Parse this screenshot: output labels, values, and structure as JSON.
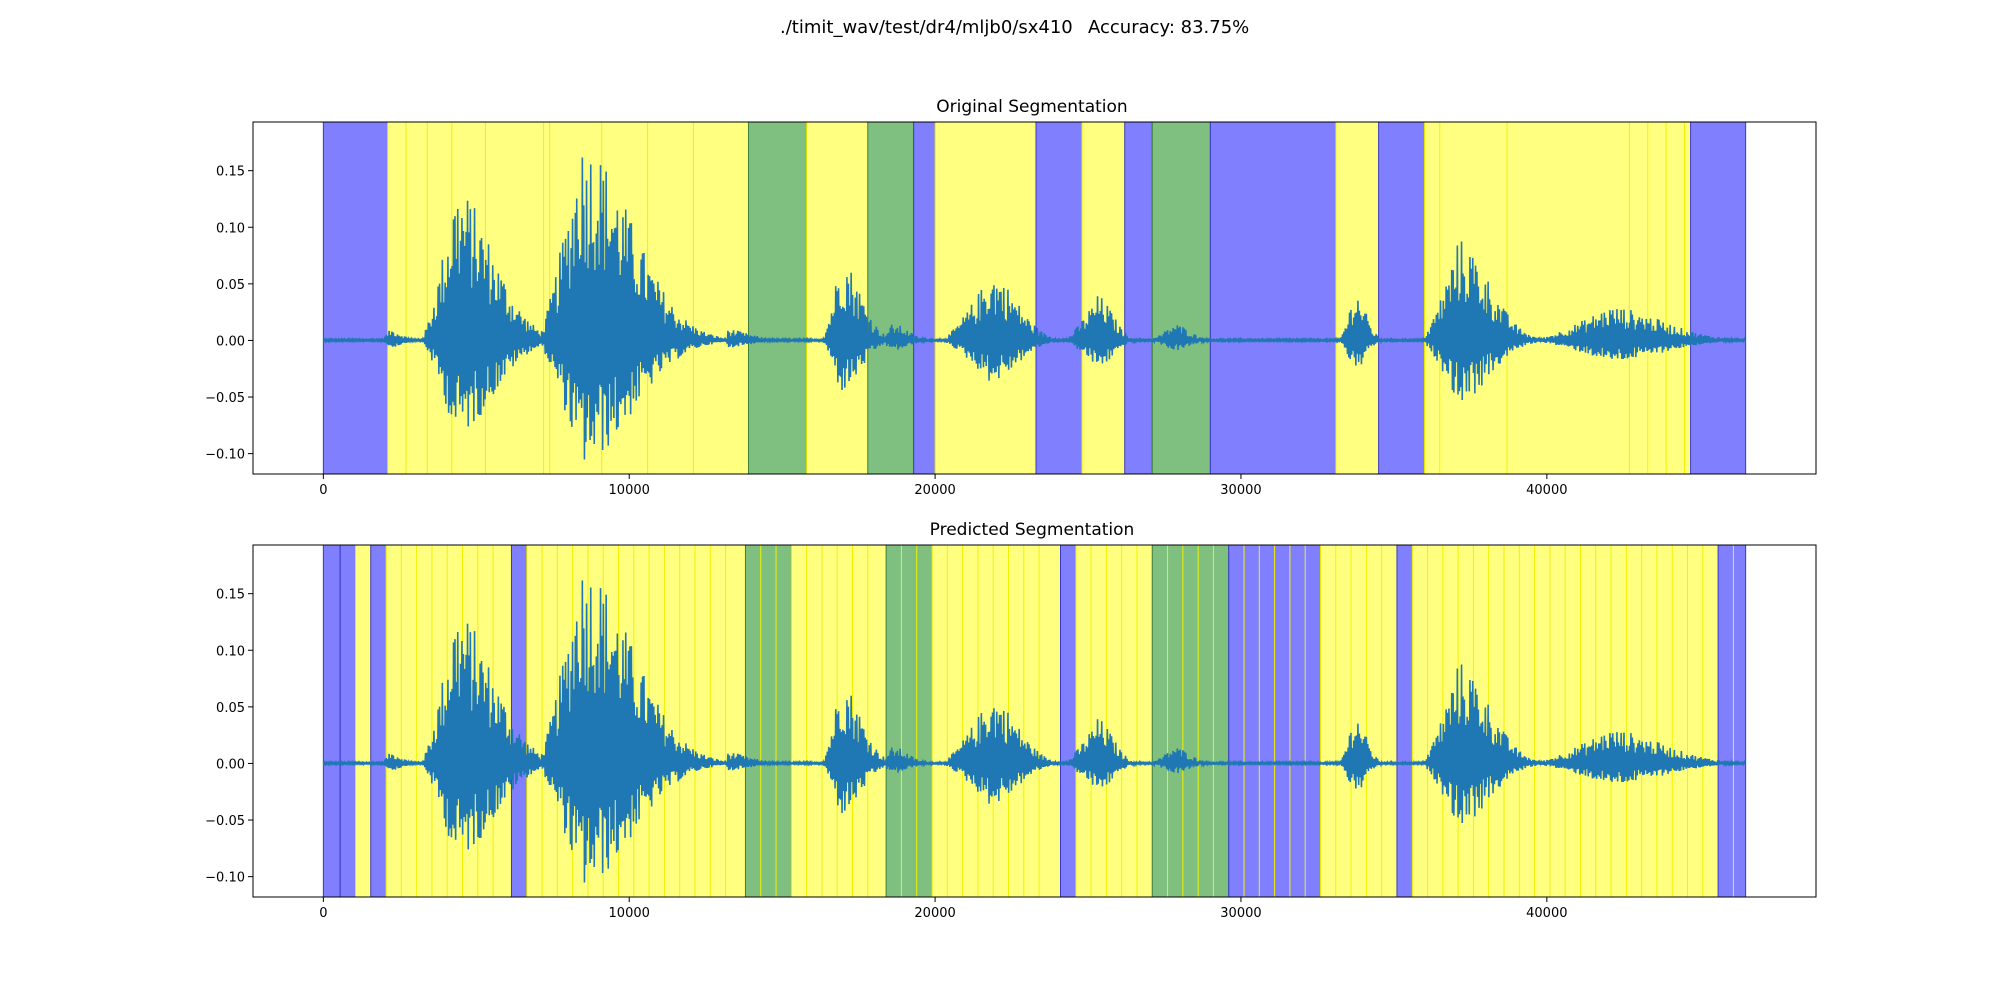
{
  "figure": {
    "suptitle_path": "./timit_wav/test/dr4/mljb0/sx410",
    "suptitle_accuracy": "Accuracy: 83.75%"
  },
  "colors": {
    "waveform": "#1f77b4",
    "vowel_segment": "#ffff80",
    "consonant_segment": "#7fbf7f",
    "silence_segment": "#8080ff"
  },
  "chart_data": [
    {
      "type": "area",
      "title": "Original Segmentation",
      "xlim": [
        -2300,
        48800
      ],
      "ylim": [
        -0.118,
        0.193
      ],
      "x_ticks": [
        0,
        10000,
        20000,
        30000,
        40000
      ],
      "x_tick_labels": [
        "0",
        "10000",
        "20000",
        "30000",
        "40000"
      ],
      "y_ticks": [
        0.15,
        0.1,
        0.05,
        0.0,
        -0.05,
        -0.1
      ],
      "y_tick_labels": [
        "0.15",
        "0.10",
        "0.05",
        "0.00",
        "−0.05",
        "−0.10"
      ],
      "grid": false,
      "segments": [
        {
          "start": 0,
          "end": 2100,
          "class": "silence"
        },
        {
          "start": 2100,
          "end": 13900,
          "class": "vowel"
        },
        {
          "start": 13900,
          "end": 15800,
          "class": "consonant"
        },
        {
          "start": 15800,
          "end": 17800,
          "class": "vowel"
        },
        {
          "start": 17800,
          "end": 19300,
          "class": "consonant"
        },
        {
          "start": 19300,
          "end": 20000,
          "class": "silence"
        },
        {
          "start": 20000,
          "end": 23300,
          "class": "vowel"
        },
        {
          "start": 23300,
          "end": 24800,
          "class": "silence"
        },
        {
          "start": 24800,
          "end": 26200,
          "class": "vowel"
        },
        {
          "start": 26200,
          "end": 27100,
          "class": "silence"
        },
        {
          "start": 27100,
          "end": 29000,
          "class": "consonant"
        },
        {
          "start": 29000,
          "end": 33100,
          "class": "silence"
        },
        {
          "start": 33100,
          "end": 34500,
          "class": "vowel"
        },
        {
          "start": 34500,
          "end": 36000,
          "class": "silence"
        },
        {
          "start": 36000,
          "end": 44700,
          "class": "vowel"
        },
        {
          "start": 44700,
          "end": 46500,
          "class": "silence"
        }
      ],
      "frame_boundaries": [
        2700,
        3400,
        4200,
        5300,
        7200,
        7400,
        9100,
        10600,
        12100,
        36500,
        38700,
        42700,
        43300,
        43900,
        44500
      ]
    },
    {
      "type": "area",
      "title": "Predicted Segmentation",
      "xlim": [
        -2300,
        48800
      ],
      "ylim": [
        -0.118,
        0.193
      ],
      "x_ticks": [
        0,
        10000,
        20000,
        30000,
        40000
      ],
      "x_tick_labels": [
        "0",
        "10000",
        "20000",
        "30000",
        "40000"
      ],
      "y_ticks": [
        0.15,
        0.1,
        0.05,
        0.0,
        -0.05,
        -0.1
      ],
      "y_tick_labels": [
        "0.15",
        "0.10",
        "0.05",
        "0.00",
        "−0.05",
        "−0.10"
      ],
      "grid": false,
      "segments": [
        {
          "start": 0,
          "end": 550,
          "class": "silence"
        },
        {
          "start": 550,
          "end": 1050,
          "class": "silence"
        },
        {
          "start": 1050,
          "end": 1550,
          "class": "vowel"
        },
        {
          "start": 1550,
          "end": 2050,
          "class": "silence"
        },
        {
          "start": 2050,
          "end": 6150,
          "class": "vowel"
        },
        {
          "start": 6150,
          "end": 6650,
          "class": "silence"
        },
        {
          "start": 6650,
          "end": 13800,
          "class": "vowel"
        },
        {
          "start": 13800,
          "end": 15300,
          "class": "consonant"
        },
        {
          "start": 15300,
          "end": 18400,
          "class": "vowel"
        },
        {
          "start": 18400,
          "end": 19900,
          "class": "consonant"
        },
        {
          "start": 19900,
          "end": 24100,
          "class": "vowel"
        },
        {
          "start": 24100,
          "end": 24600,
          "class": "silence"
        },
        {
          "start": 24600,
          "end": 27100,
          "class": "vowel"
        },
        {
          "start": 27100,
          "end": 29600,
          "class": "consonant"
        },
        {
          "start": 29600,
          "end": 32600,
          "class": "silence"
        },
        {
          "start": 32600,
          "end": 35100,
          "class": "vowel"
        },
        {
          "start": 35100,
          "end": 35600,
          "class": "silence"
        },
        {
          "start": 35600,
          "end": 45600,
          "class": "vowel"
        },
        {
          "start": 45600,
          "end": 46500,
          "class": "silence"
        }
      ],
      "frame_boundaries": [
        2550,
        3050,
        3550,
        4050,
        4550,
        5050,
        5550,
        7150,
        7650,
        8150,
        8650,
        9150,
        9650,
        10150,
        10650,
        11150,
        11650,
        12150,
        12650,
        13150,
        14300,
        14800,
        15800,
        16300,
        16800,
        17300,
        17800,
        18900,
        19400,
        20400,
        20900,
        21400,
        21900,
        22400,
        22900,
        23400,
        25100,
        25600,
        26100,
        26600,
        27600,
        28100,
        28600,
        29100,
        30100,
        30600,
        31100,
        31600,
        32100,
        33100,
        33600,
        34100,
        34600,
        36100,
        36600,
        37100,
        37600,
        38100,
        38600,
        39100,
        39600,
        40100,
        40600,
        41100,
        41600,
        42100,
        42600,
        43100,
        43600,
        44100,
        44600,
        45100,
        46100
      ]
    }
  ]
}
